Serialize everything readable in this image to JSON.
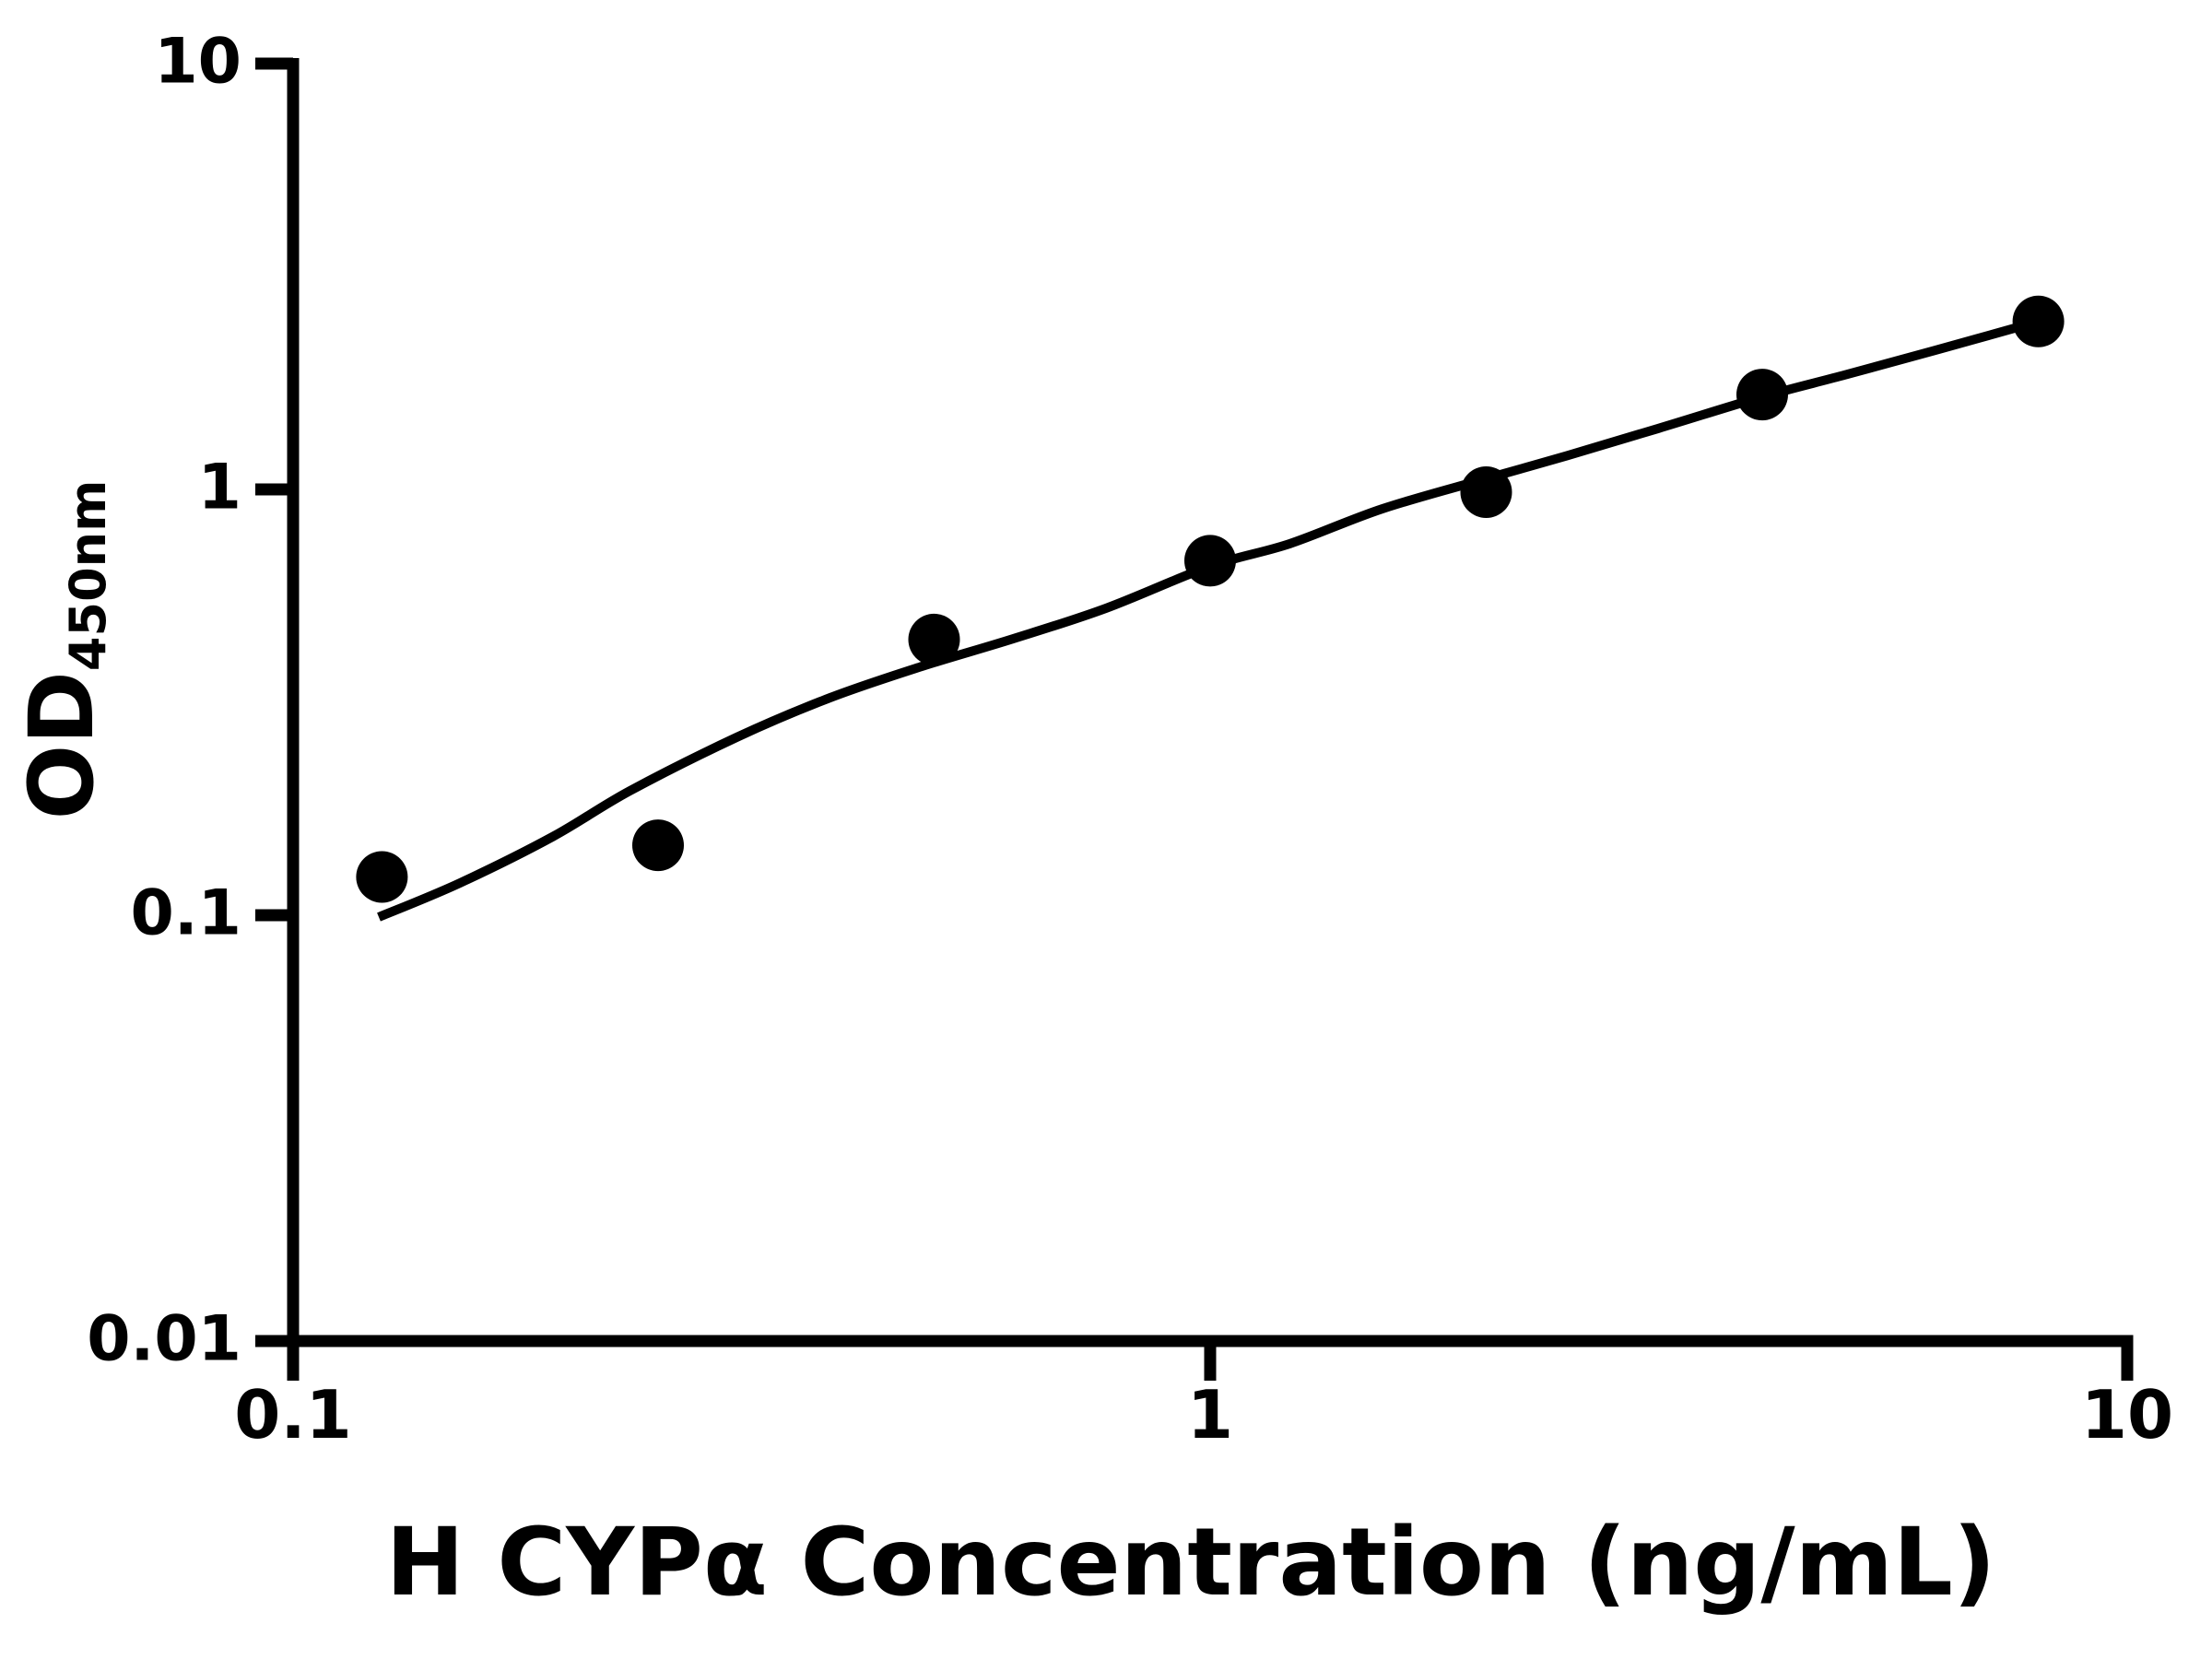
{
  "figure": {
    "background_color": "#ffffff",
    "foreground_color": "#000000"
  },
  "chart_data": {
    "type": "scatter",
    "title": "",
    "xlabel": "H CYPα Concentration (ng/mL)",
    "ylabel_main": "OD",
    "ylabel_sub": "450nm",
    "x_scale": "log",
    "y_scale": "log",
    "xlim": [
      0.1,
      10
    ],
    "ylim": [
      0.01,
      10
    ],
    "grid": false,
    "legend_position": "none",
    "x_ticks": [
      {
        "value": 0.1,
        "label": "0.1"
      },
      {
        "value": 1,
        "label": "1"
      },
      {
        "value": 10,
        "label": "10"
      }
    ],
    "y_ticks": [
      {
        "value": 10,
        "label": "10"
      },
      {
        "value": 1,
        "label": "1"
      },
      {
        "value": 0.1,
        "label": "0.1"
      },
      {
        "value": 0.01,
        "label": "0.01"
      }
    ],
    "series": [
      {
        "name": "standard-curve-points",
        "marker": "filled-circle",
        "marker_radius_px": 28,
        "color": "#000000",
        "points": [
          {
            "x": 0.125,
            "y": 0.123
          },
          {
            "x": 0.25,
            "y": 0.146
          },
          {
            "x": 0.5,
            "y": 0.444
          },
          {
            "x": 1,
            "y": 0.68
          },
          {
            "x": 2,
            "y": 0.985
          },
          {
            "x": 4,
            "y": 1.67
          },
          {
            "x": 8,
            "y": 2.48
          }
        ]
      }
    ],
    "fit_curve": {
      "name": "fitted-standard-curve-line",
      "color": "#000000",
      "stroke_width_px": 10,
      "points": [
        [
          0.124,
          0.099
        ],
        [
          0.152,
          0.119
        ],
        [
          0.192,
          0.153
        ],
        [
          0.233,
          0.196
        ],
        [
          0.305,
          0.262
        ],
        [
          0.385,
          0.324
        ],
        [
          0.485,
          0.384
        ],
        [
          0.61,
          0.446
        ],
        [
          0.77,
          0.526
        ],
        [
          1.0,
          0.66
        ],
        [
          1.22,
          0.745
        ],
        [
          1.54,
          0.9
        ],
        [
          2.0,
          1.06
        ],
        [
          2.45,
          1.2
        ],
        [
          3.08,
          1.39
        ],
        [
          4.0,
          1.65
        ],
        [
          4.89,
          1.85
        ],
        [
          6.17,
          2.12
        ],
        [
          8.0,
          2.48
        ]
      ]
    }
  }
}
